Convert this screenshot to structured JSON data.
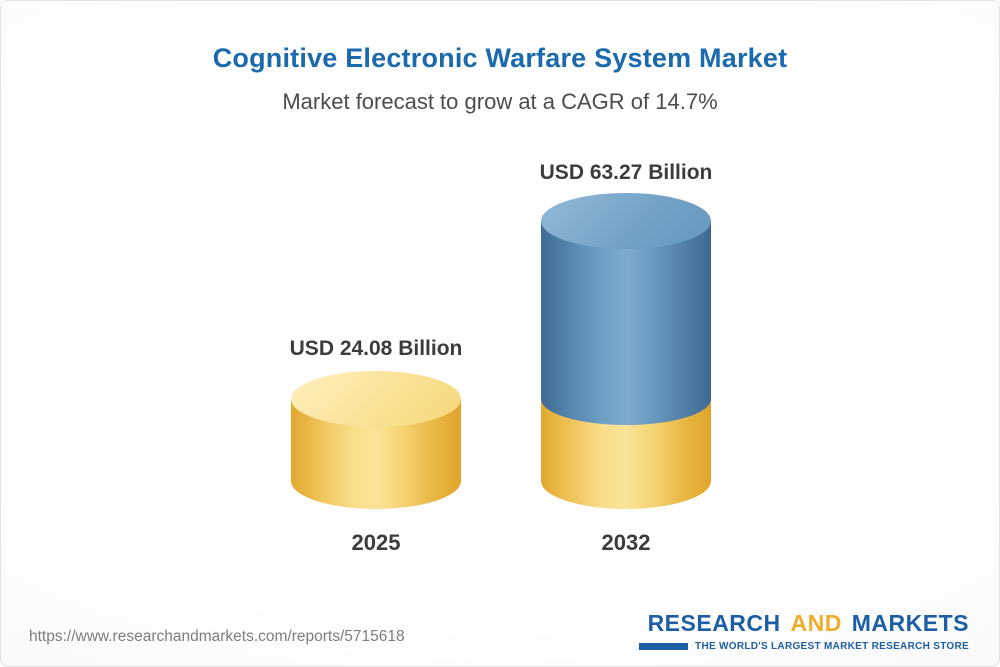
{
  "title": "Cognitive Electronic Warfare System Market",
  "subtitle": "Market forecast to grow at a CAGR of 14.7%",
  "chart_data": {
    "type": "bar",
    "subtype": "3d-cylinder",
    "categories": [
      "2025",
      "2032"
    ],
    "values": [
      24.08,
      63.27
    ],
    "value_labels": [
      "USD 24.08 Billion",
      "USD 63.27 Billion"
    ],
    "unit": "USD Billion",
    "cagr_percent": 14.7,
    "ylim": [
      0,
      70
    ],
    "grid": false,
    "legend": "none",
    "colors": {
      "cylinder_2025": "#f2cb5f",
      "cylinder_2032_lower": "#f2cb5f",
      "cylinder_2032_upper": "#6699c2",
      "title_blue": "#1a6aad"
    }
  },
  "footer": {
    "url": "https://www.researchandmarkets.com/reports/5715618",
    "logo": {
      "research": "RESEARCH",
      "and": "AND",
      "markets": "MARKETS",
      "tagline": "THE WORLD'S LARGEST MARKET RESEARCH STORE"
    }
  }
}
